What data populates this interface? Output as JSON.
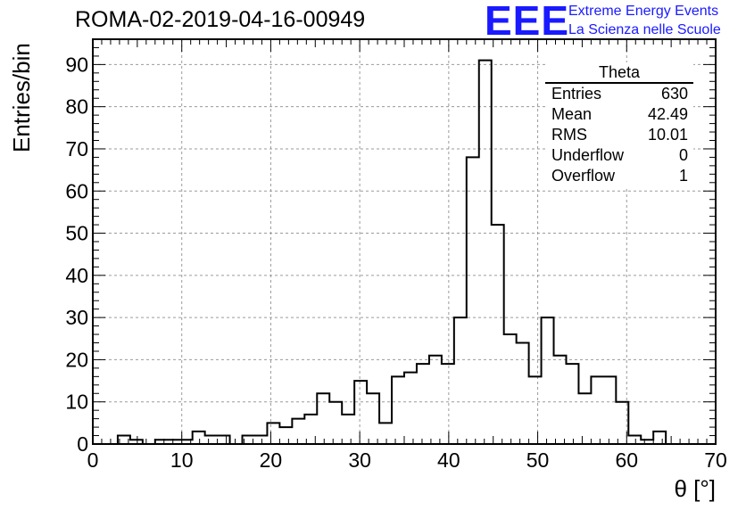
{
  "header": {
    "title": "ROMA-02-2019-04-16-00949",
    "logo_mark": "EEE",
    "logo_line1": "Extreme Energy Events",
    "logo_line2": "La Scienza nelle Scuole"
  },
  "stats_box": {
    "title": "Theta",
    "rows": [
      {
        "label": "Entries",
        "value": "630"
      },
      {
        "label": "Mean",
        "value": "42.49"
      },
      {
        "label": "RMS",
        "value": "10.01"
      },
      {
        "label": "Underflow",
        "value": "0"
      },
      {
        "label": "Overflow",
        "value": "1"
      }
    ]
  },
  "colors": {
    "logo": "#1a1aff",
    "line": "#000000",
    "grid": "#9a9a9a"
  },
  "chart_data": {
    "type": "bar",
    "style": "step-histogram",
    "title": "ROMA-02-2019-04-16-00949",
    "xlabel": "θ [°]",
    "ylabel": "Entries/bin",
    "xlim": [
      0,
      70
    ],
    "ylim": [
      0,
      96
    ],
    "grid": true,
    "bin_width": 1.4,
    "bin_start": 0,
    "xticks": [
      0,
      10,
      20,
      30,
      40,
      50,
      60,
      70
    ],
    "yticks": [
      0,
      10,
      20,
      30,
      40,
      50,
      60,
      70,
      80,
      90
    ],
    "values": [
      0,
      0,
      2,
      1,
      0,
      1,
      1,
      1,
      3,
      2,
      2,
      0,
      2,
      2,
      5,
      4,
      6,
      7,
      12,
      10,
      7,
      15,
      12,
      5,
      16,
      17,
      19,
      21,
      19,
      30,
      68,
      91,
      52,
      26,
      24,
      16,
      30,
      21,
      19,
      12,
      16,
      16,
      10,
      2,
      1,
      3,
      0,
      0,
      0,
      0
    ]
  }
}
